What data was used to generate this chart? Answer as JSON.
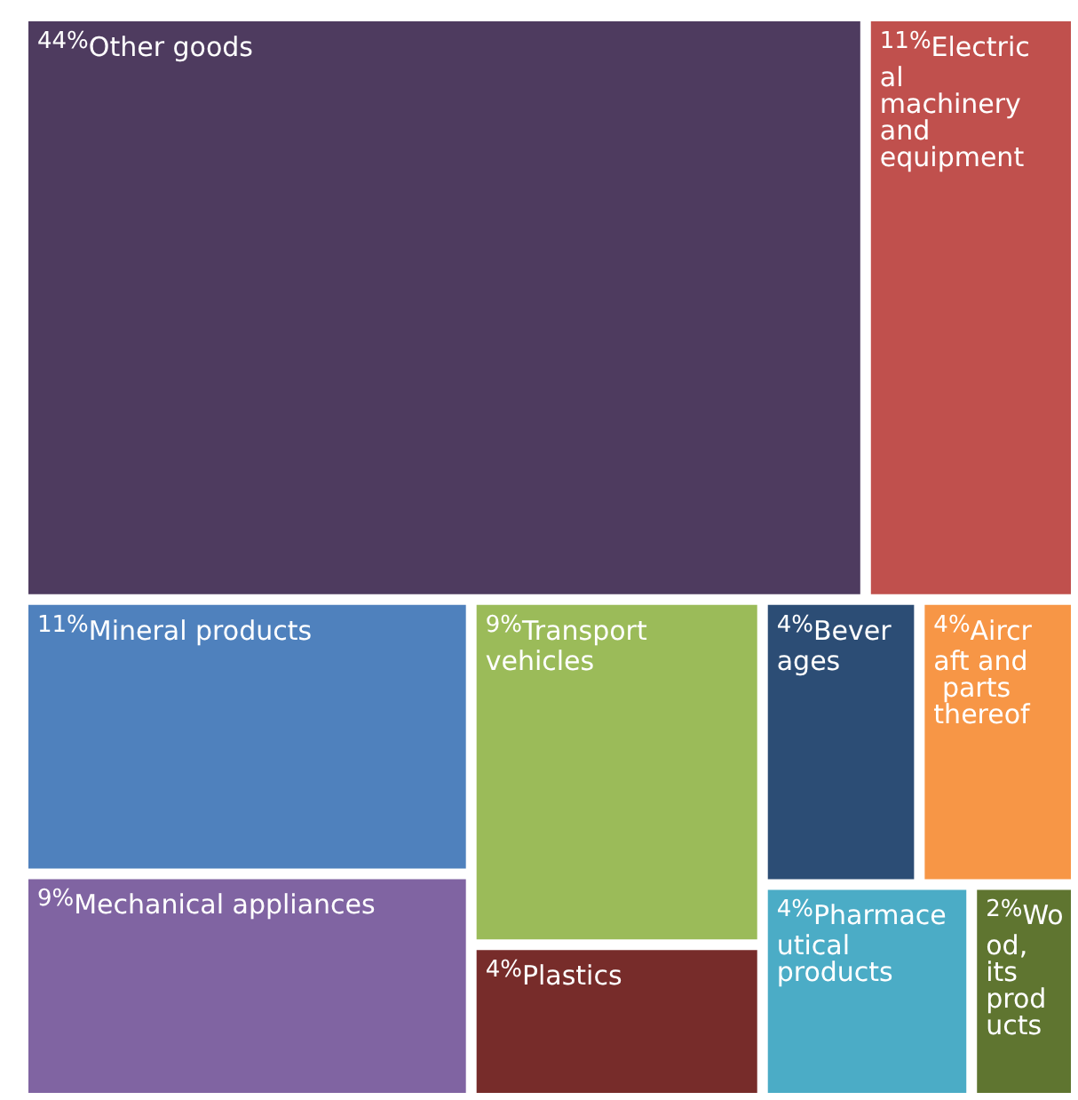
{
  "chart_data": {
    "type": "other",
    "categories": [
      "Other goods",
      "Mineral products",
      "Electrical machinery and equipment",
      "Transport vehicles",
      "Mechanical appliances",
      "Pharmaceutical products",
      "Aircraft and parts thereof",
      "Beverages",
      "Plastics",
      "Wood, its products"
    ],
    "values": [
      44,
      11,
      11,
      9,
      9,
      4,
      4,
      4,
      4,
      2
    ],
    "value_labels": [
      "44%",
      "11%",
      "11%",
      "9%",
      "9%",
      "4%",
      "4%",
      "4%",
      "4%",
      "2%"
    ],
    "colors": [
      "#4e3b5f",
      "#4f81bd",
      "#c0504d",
      "#9bbb59",
      "#8064a2",
      "#4bacc6",
      "#f79646",
      "#2c4d75",
      "#772c2a",
      "#5f7530"
    ]
  }
}
